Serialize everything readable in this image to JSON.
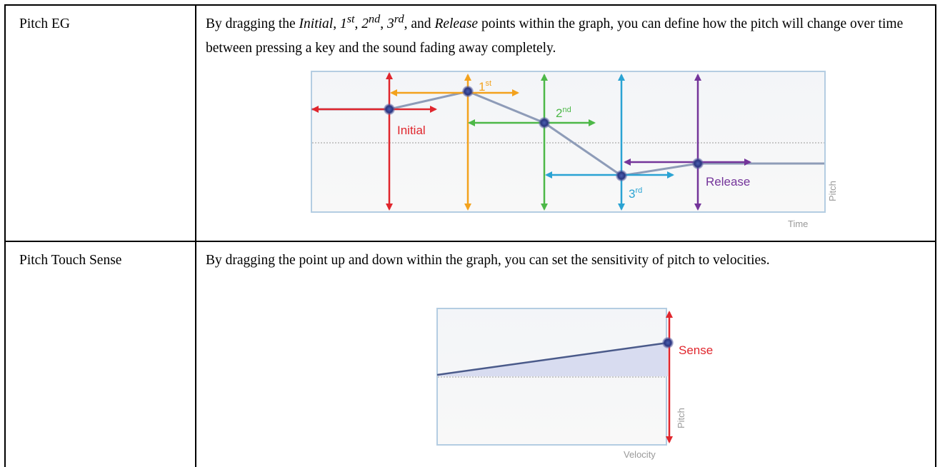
{
  "table": {
    "rows": [
      {
        "label": "Pitch EG",
        "description": [
          "By dragging the ",
          "Initial",
          ", ",
          "1",
          "st",
          ", ",
          "2",
          "nd",
          ", ",
          "3",
          "rd",
          ", and ",
          "Release",
          " points within the graph, you can define how the pitch will change over time between pressing a key and the sound fading away completely."
        ],
        "diagram": {
          "labels": {
            "initial": "Initial",
            "first": [
              "1",
              "st"
            ],
            "second": [
              "2",
              "nd"
            ],
            "third": [
              "3",
              "rd"
            ],
            "release": "Release",
            "y_axis": "Pitch",
            "x_axis": "Time"
          }
        }
      },
      {
        "label": "Pitch Touch Sense",
        "description": "By dragging the point up and down within the graph, you can set the sensitivity of pitch to velocities.",
        "diagram": {
          "labels": {
            "sense": "Sense",
            "y_axis": "Pitch",
            "x_axis": "Velocity"
          }
        }
      }
    ]
  }
}
